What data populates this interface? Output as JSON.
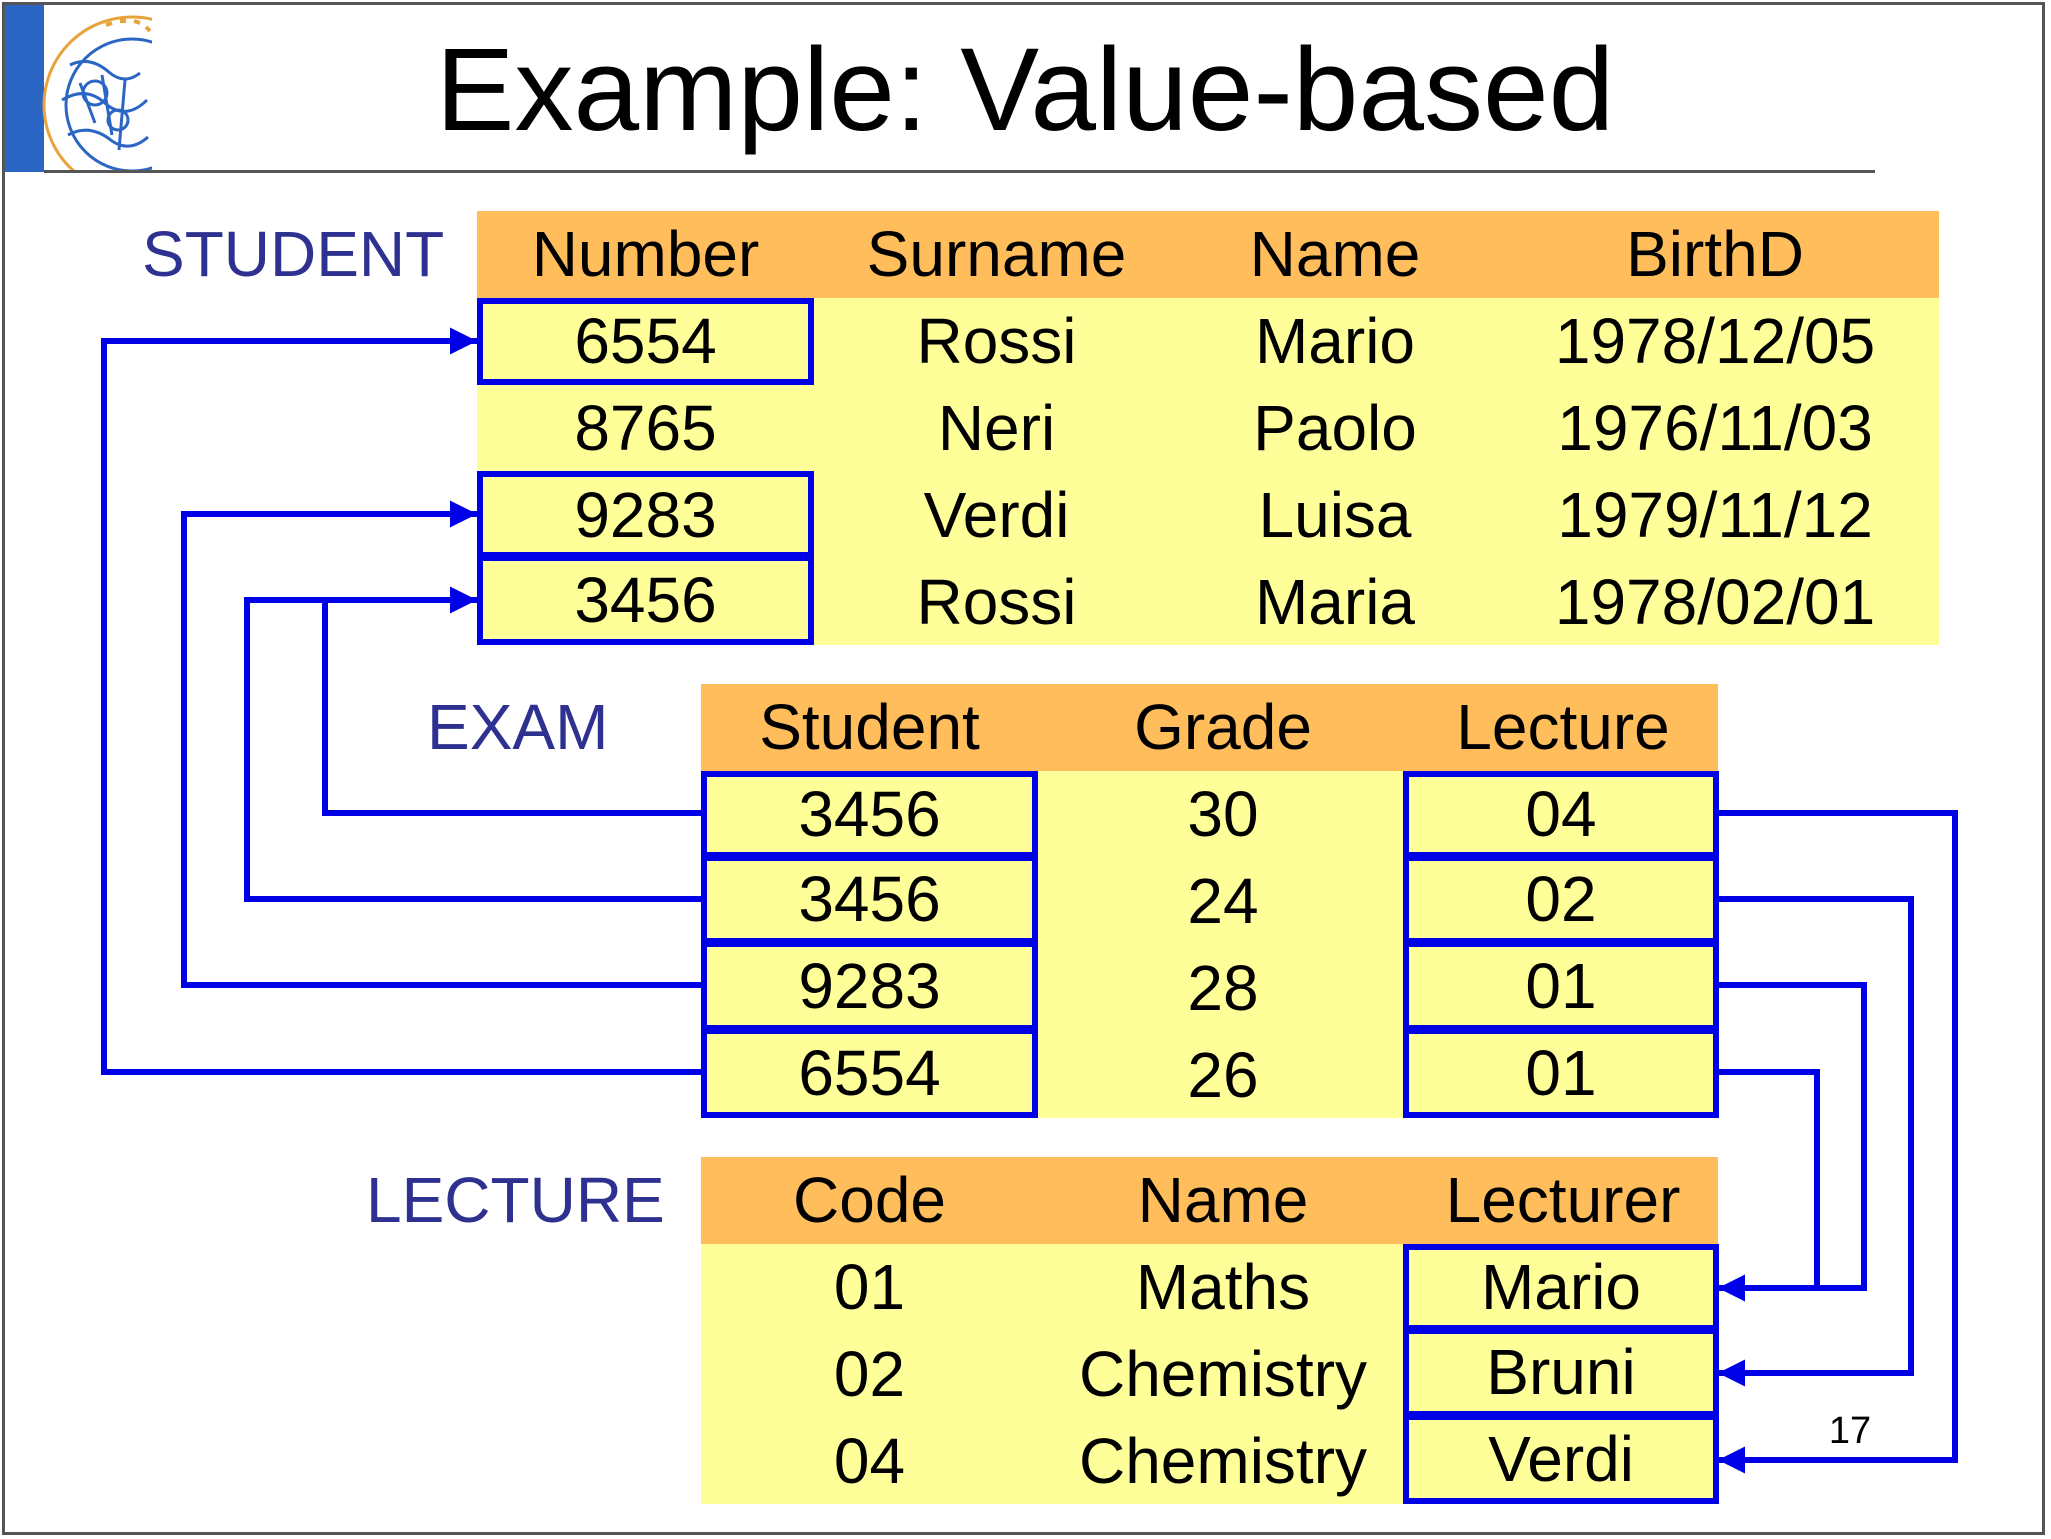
{
  "title": "Example: Value-based",
  "page_number": "17",
  "colors": {
    "header_fill": "#ffbd5c",
    "body_fill": "#ffff99",
    "highlight_border": "#0000e6",
    "label_color": "#2e3190",
    "arrow_color": "#0000e6",
    "title_bar": "#2b66c4"
  },
  "icons": {
    "logo": "university-seal-icon"
  },
  "tables": {
    "student": {
      "label": "STUDENT",
      "columns": [
        "Number",
        "Surname",
        "Name",
        "BirthD"
      ],
      "rows": [
        [
          "6554",
          "Rossi",
          "Mario",
          "1978/12/05"
        ],
        [
          "8765",
          "Neri",
          "Paolo",
          "1976/11/03"
        ],
        [
          "9283",
          "Verdi",
          "Luisa",
          "1979/11/12"
        ],
        [
          "3456",
          "Rossi",
          "Maria",
          "1978/02/01"
        ]
      ],
      "highlighted": [
        [
          0,
          0
        ],
        [
          2,
          0
        ],
        [
          3,
          0
        ]
      ]
    },
    "exam": {
      "label": "EXAM",
      "columns": [
        "Student",
        "Grade",
        "Lecture"
      ],
      "rows": [
        [
          "3456",
          "30",
          "04"
        ],
        [
          "3456",
          "24",
          "02"
        ],
        [
          "9283",
          "28",
          "01"
        ],
        [
          "6554",
          "26",
          "01"
        ]
      ],
      "highlighted": [
        [
          0,
          0
        ],
        [
          1,
          0
        ],
        [
          2,
          0
        ],
        [
          3,
          0
        ],
        [
          0,
          2
        ],
        [
          1,
          2
        ],
        [
          2,
          2
        ],
        [
          3,
          2
        ]
      ]
    },
    "lecture": {
      "label": "LECTURE",
      "columns": [
        "Code",
        "Name",
        "Lecturer"
      ],
      "rows": [
        [
          "01",
          "Maths",
          "Mario"
        ],
        [
          "02",
          "Chemistry",
          "Bruni"
        ],
        [
          "04",
          "Chemistry",
          "Verdi"
        ]
      ],
      "highlighted": [
        [
          0,
          2
        ],
        [
          1,
          2
        ],
        [
          2,
          2
        ]
      ]
    }
  },
  "references": [
    {
      "from": "exam.Student row 1",
      "to": "student.Number row 4"
    },
    {
      "from": "exam.Student row 2",
      "to": "student.Number row 4"
    },
    {
      "from": "exam.Student row 3",
      "to": "student.Number row 3"
    },
    {
      "from": "exam.Student row 4",
      "to": "student.Number row 1"
    },
    {
      "from": "exam.Lecture row 1",
      "to": "lecture.Lecturer row 3"
    },
    {
      "from": "exam.Lecture row 2",
      "to": "lecture.Lecturer row 2"
    },
    {
      "from": "exam.Lecture row 3",
      "to": "lecture.Lecturer row 1"
    },
    {
      "from": "exam.Lecture row 4",
      "to": "lecture.Lecturer row 1"
    }
  ]
}
